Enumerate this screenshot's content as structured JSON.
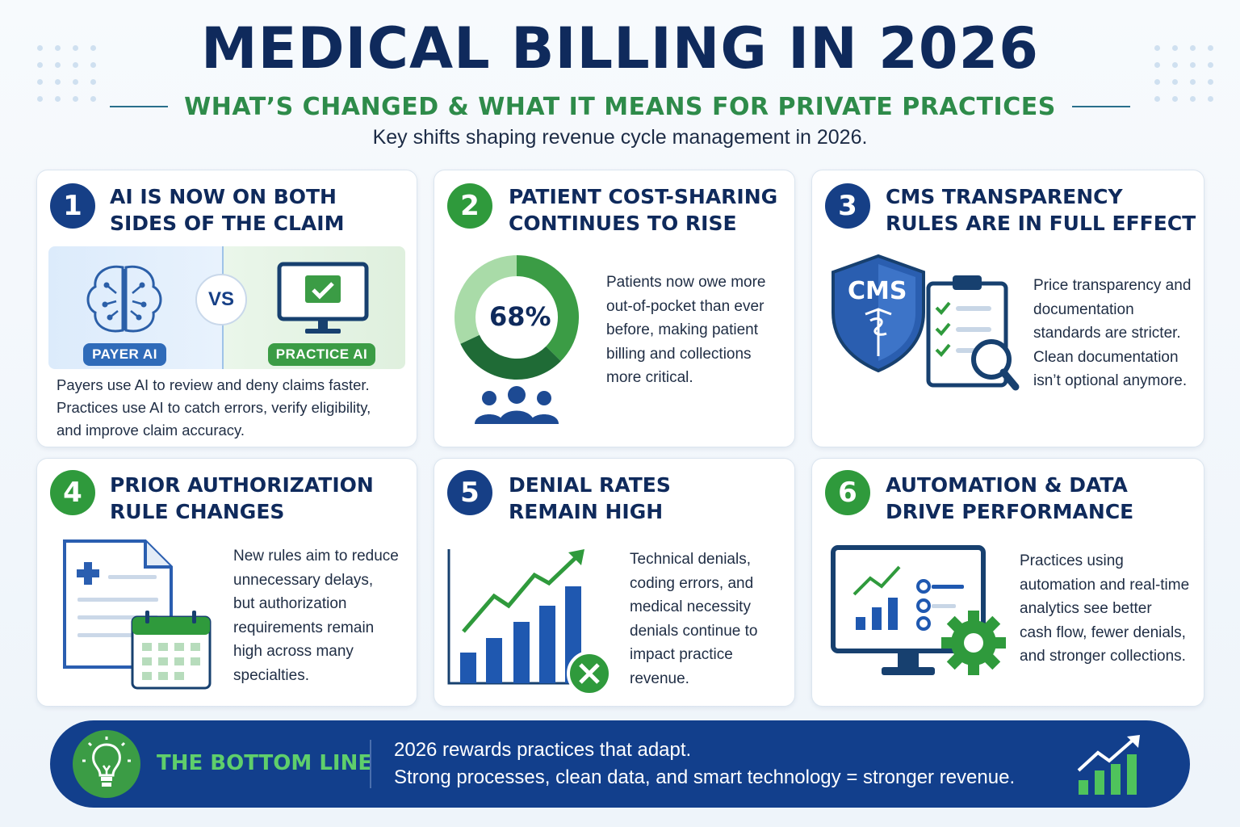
{
  "header": {
    "title": "MEDICAL BILLING IN 2026",
    "subtitle": "WHAT’S CHANGED & WHAT IT MEANS FOR PRIVATE PRACTICES",
    "intro": "Key shifts shaping revenue cycle management in 2026."
  },
  "cards": [
    {
      "number": "1",
      "title": "AI IS NOW ON BOTH\nSIDES OF THE CLAIM",
      "text": "Payers use AI to review and deny claims faster.\nPractices use AI to catch errors, verify eligibility,\nand improve claim accuracy.",
      "payer_label": "PAYER AI",
      "vs_label": "VS",
      "practice_label": "PRACTICE AI"
    },
    {
      "number": "2",
      "title": "PATIENT COST-SHARING\nCONTINUES TO RISE",
      "text": "Patients now owe more\nout-of-pocket than ever\nbefore, making patient\nbilling and collections\nmore critical.",
      "percent_label": "68%",
      "percent_value": 68
    },
    {
      "number": "3",
      "title": "CMS TRANSPARENCY\nRULES ARE IN FULL EFFECT",
      "text": "Price transparency and\ndocumentation\nstandards are stricter.\nClean documentation\nisn’t optional anymore.",
      "shield_label": "CMS"
    },
    {
      "number": "4",
      "title": "PRIOR AUTHORIZATION\nRULE CHANGES",
      "text": "New rules aim to reduce\nunnecessary delays,\nbut authorization\nrequirements remain\nhigh across many\nspecialties."
    },
    {
      "number": "5",
      "title": "DENIAL RATES\nREMAIN HIGH",
      "text": "Technical denials,\ncoding errors, and\nmedical necessity\ndenials continue to\nimpact practice\nrevenue."
    },
    {
      "number": "6",
      "title": "AUTOMATION & DATA\nDRIVE PERFORMANCE",
      "text": "Practices using\nautomation and real-time\nanalytics see better\ncash flow, fewer denials,\nand stronger collections."
    }
  ],
  "bottom": {
    "label": "THE BOTTOM LINE",
    "text": "2026 rewards practices that adapt.\nStrong processes, clean data, and smart technology = stronger revenue."
  },
  "colors": {
    "navy": "#0f2a5c",
    "blue": "#163f86",
    "green": "#2f9a3c",
    "light_green": "#5fcf6b"
  }
}
